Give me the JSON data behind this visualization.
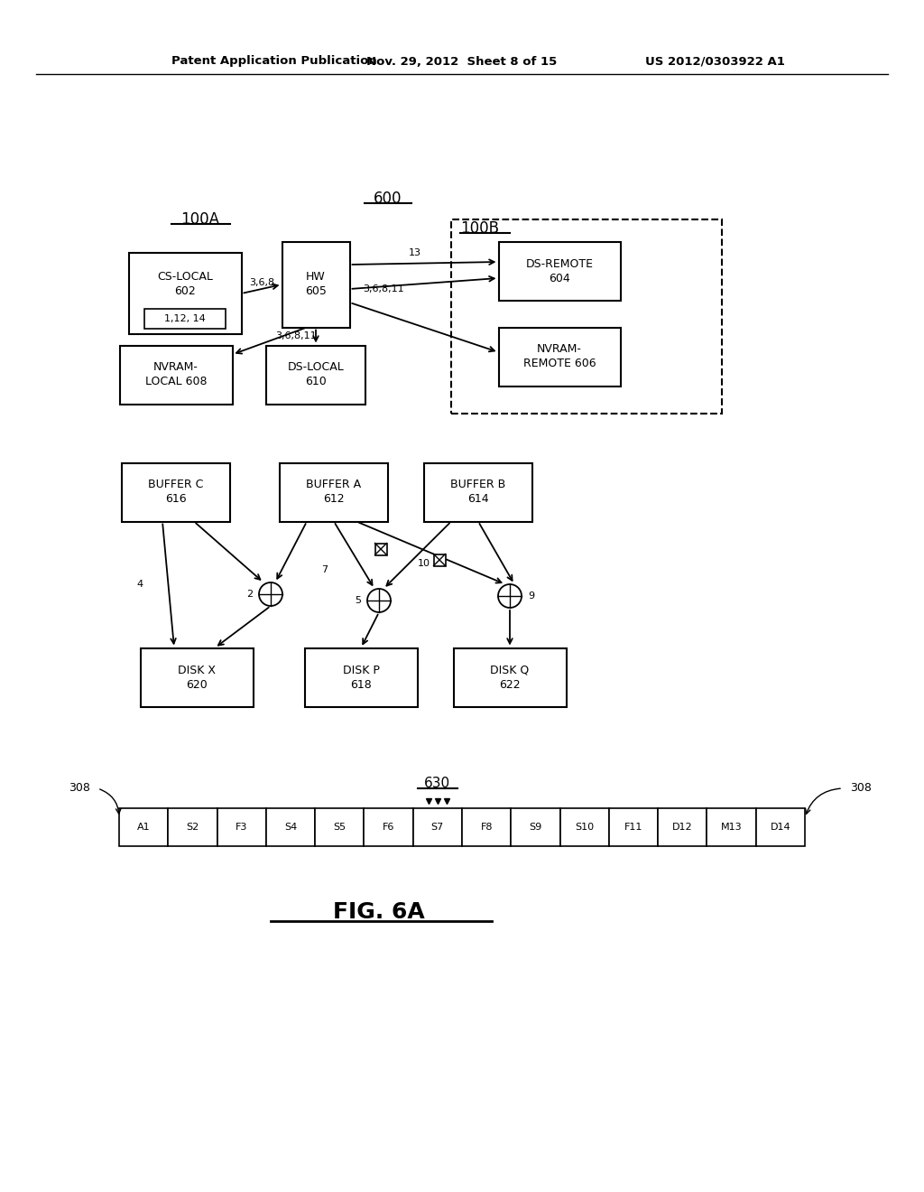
{
  "header_left": "Patent Application Publication",
  "header_center": "Nov. 29, 2012  Sheet 8 of 15",
  "header_right": "US 2012/0303922 A1",
  "background_color": "#ffffff",
  "fig_label": "FIG. 6A",
  "strip_cells": [
    "A1",
    "S2",
    "F3",
    "S4",
    "S5",
    "F6",
    "S7",
    "F8",
    "S9",
    "S10",
    "F11",
    "D12",
    "M13",
    "D14"
  ]
}
